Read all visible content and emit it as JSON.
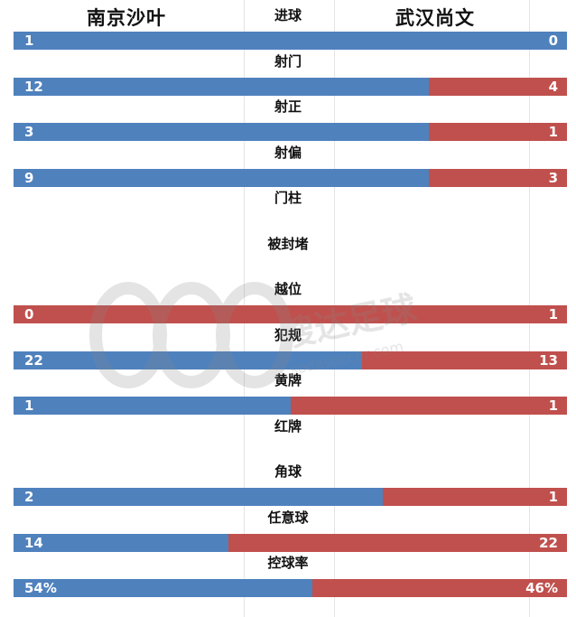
{
  "chart_data": {
    "type": "bar",
    "orientation": "horizontal",
    "stacked": true,
    "teams": {
      "home": "南京沙叶",
      "away": "武汉尚文"
    },
    "home_color": "#4f81bd",
    "away_color": "#c0504d",
    "rows": [
      {
        "label": "进球",
        "home": "1",
        "away": "0",
        "home_share": 1.0
      },
      {
        "label": "射门",
        "home": "12",
        "away": "4",
        "home_share": 0.75
      },
      {
        "label": "射正",
        "home": "3",
        "away": "1",
        "home_share": 0.75
      },
      {
        "label": "射偏",
        "home": "9",
        "away": "3",
        "home_share": 0.75
      },
      {
        "label": "门柱",
        "home": null,
        "away": null,
        "home_share": null
      },
      {
        "label": "被封堵",
        "home": null,
        "away": null,
        "home_share": null
      },
      {
        "label": "越位",
        "home": "0",
        "away": "1",
        "home_share": 0.0
      },
      {
        "label": "犯规",
        "home": "22",
        "away": "13",
        "home_share": 0.629
      },
      {
        "label": "黄牌",
        "home": "1",
        "away": "1",
        "home_share": 0.5
      },
      {
        "label": "红牌",
        "home": null,
        "away": null,
        "home_share": null
      },
      {
        "label": "角球",
        "home": "2",
        "away": "1",
        "home_share": 0.667
      },
      {
        "label": "任意球",
        "home": "14",
        "away": "22",
        "home_share": 0.389
      },
      {
        "label": "控球率",
        "home": "54%",
        "away": "46%",
        "home_share": 0.54
      }
    ]
  },
  "watermark": {
    "brand": "sodo",
    "text": "搜达足球",
    "url": "sodasoccer.com"
  }
}
